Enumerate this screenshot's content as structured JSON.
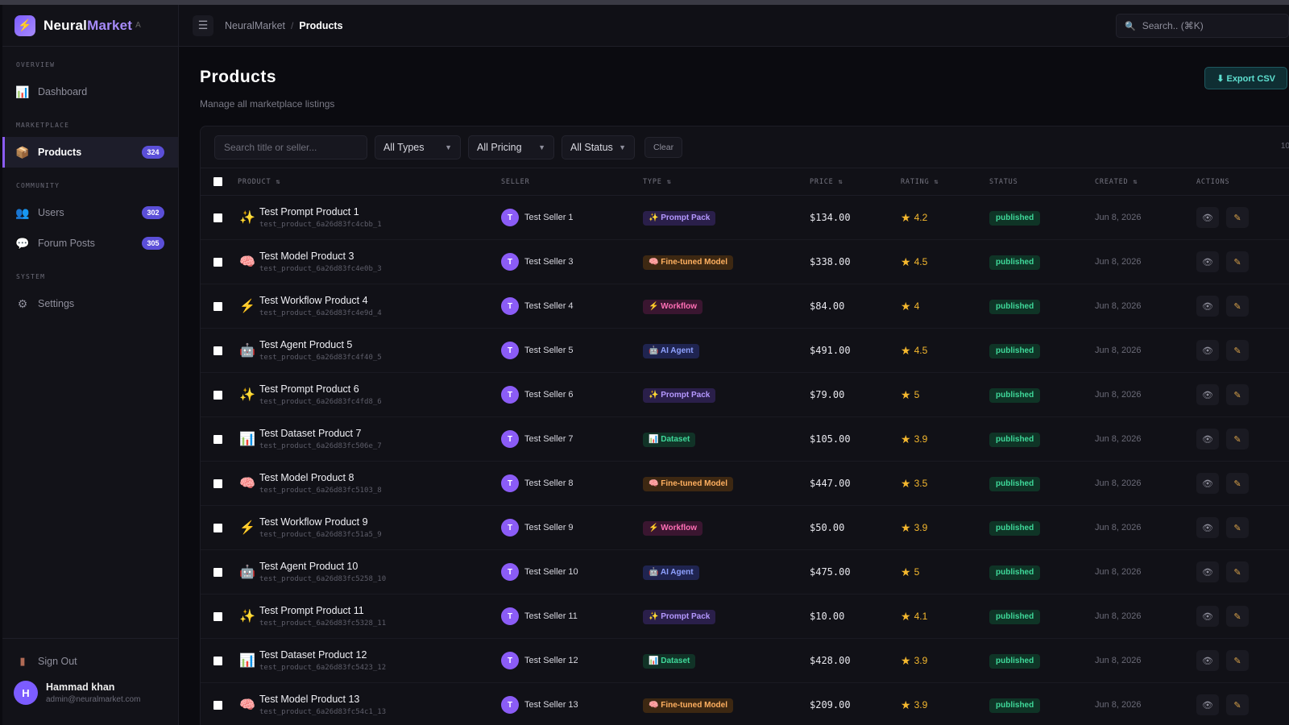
{
  "brand": {
    "name_main": "Neural",
    "name_accent": "Market",
    "suffix": "A"
  },
  "sidebar": {
    "sections": [
      {
        "label": "OVERVIEW",
        "items": [
          {
            "label": "Dashboard",
            "icon": "bar-chart-icon"
          }
        ]
      },
      {
        "label": "MARKETPLACE",
        "items": [
          {
            "label": "Products",
            "icon": "package-icon",
            "badge": "324",
            "active": true
          }
        ]
      },
      {
        "label": "COMMUNITY",
        "items": [
          {
            "label": "Users",
            "icon": "users-icon",
            "badge": "302"
          },
          {
            "label": "Forum Posts",
            "icon": "chat-icon",
            "badge": "305"
          }
        ]
      },
      {
        "label": "SYSTEM",
        "items": [
          {
            "label": "Settings",
            "icon": "gear-icon"
          }
        ]
      }
    ],
    "sign_out": "Sign Out",
    "user": {
      "initial": "H",
      "name": "Hammad khan",
      "email": "admin@neuralmarket.com"
    }
  },
  "topbar": {
    "crumb_root": "NeuralMarket",
    "crumb_sep": "/",
    "crumb_current": "Products",
    "search_placeholder": "Search.. (⌘K)"
  },
  "page": {
    "title": "Products",
    "subtitle": "Manage all marketplace listings",
    "export_label": "⬇ Export CSV"
  },
  "filters": {
    "search_placeholder": "Search title or seller...",
    "types": "All Types",
    "pricing": "All Pricing",
    "status": "All Status",
    "clear": "Clear",
    "right_text": "10"
  },
  "table": {
    "headers": {
      "product": "PRODUCT ⇅",
      "seller": "SELLER",
      "type": "TYPE ⇅",
      "price": "PRICE ⇅",
      "rating": "RATING ⇅",
      "status": "STATUS",
      "created": "CREATED ⇅",
      "actions": "ACTIONS"
    },
    "rows": [
      {
        "icon": "✨",
        "title": "Test Prompt Product 1",
        "slug": "test_product_6a26d83fc4cbb_1",
        "seller_initial": "T",
        "seller": "Test Seller 1",
        "type_label": "✨ Prompt Pack",
        "type_class": "t-prompt",
        "price": "$134.00",
        "rating": "4.2",
        "status": "published",
        "created": "Jun 8, 2026"
      },
      {
        "icon": "🧠",
        "title": "Test Model Product 3",
        "slug": "test_product_6a26d83fc4e0b_3",
        "seller_initial": "T",
        "seller": "Test Seller 3",
        "type_label": "🧠 Fine-tuned Model",
        "type_class": "t-model",
        "price": "$338.00",
        "rating": "4.5",
        "status": "published",
        "created": "Jun 8, 2026"
      },
      {
        "icon": "⚡",
        "title": "Test Workflow Product 4",
        "slug": "test_product_6a26d83fc4e9d_4",
        "seller_initial": "T",
        "seller": "Test Seller 4",
        "type_label": "⚡ Workflow",
        "type_class": "t-workflow",
        "price": "$84.00",
        "rating": "4",
        "status": "published",
        "created": "Jun 8, 2026"
      },
      {
        "icon": "🤖",
        "title": "Test Agent Product 5",
        "slug": "test_product_6a26d83fc4f40_5",
        "seller_initial": "T",
        "seller": "Test Seller 5",
        "type_label": "🤖 AI Agent",
        "type_class": "t-agent",
        "price": "$491.00",
        "rating": "4.5",
        "status": "published",
        "created": "Jun 8, 2026"
      },
      {
        "icon": "✨",
        "title": "Test Prompt Product 6",
        "slug": "test_product_6a26d83fc4fd8_6",
        "seller_initial": "T",
        "seller": "Test Seller 6",
        "type_label": "✨ Prompt Pack",
        "type_class": "t-prompt",
        "price": "$79.00",
        "rating": "5",
        "status": "published",
        "created": "Jun 8, 2026"
      },
      {
        "icon": "📊",
        "title": "Test Dataset Product 7",
        "slug": "test_product_6a26d83fc506e_7",
        "seller_initial": "T",
        "seller": "Test Seller 7",
        "type_label": "📊 Dataset",
        "type_class": "t-dataset",
        "price": "$105.00",
        "rating": "3.9",
        "status": "published",
        "created": "Jun 8, 2026"
      },
      {
        "icon": "🧠",
        "title": "Test Model Product 8",
        "slug": "test_product_6a26d83fc5103_8",
        "seller_initial": "T",
        "seller": "Test Seller 8",
        "type_label": "🧠 Fine-tuned Model",
        "type_class": "t-model",
        "price": "$447.00",
        "rating": "3.5",
        "status": "published",
        "created": "Jun 8, 2026"
      },
      {
        "icon": "⚡",
        "title": "Test Workflow Product 9",
        "slug": "test_product_6a26d83fc51a5_9",
        "seller_initial": "T",
        "seller": "Test Seller 9",
        "type_label": "⚡ Workflow",
        "type_class": "t-workflow",
        "price": "$50.00",
        "rating": "3.9",
        "status": "published",
        "created": "Jun 8, 2026"
      },
      {
        "icon": "🤖",
        "title": "Test Agent Product 10",
        "slug": "test_product_6a26d83fc5258_10",
        "seller_initial": "T",
        "seller": "Test Seller 10",
        "type_label": "🤖 AI Agent",
        "type_class": "t-agent",
        "price": "$475.00",
        "rating": "5",
        "status": "published",
        "created": "Jun 8, 2026"
      },
      {
        "icon": "✨",
        "title": "Test Prompt Product 11",
        "slug": "test_product_6a26d83fc5328_11",
        "seller_initial": "T",
        "seller": "Test Seller 11",
        "type_label": "✨ Prompt Pack",
        "type_class": "t-prompt",
        "price": "$10.00",
        "rating": "4.1",
        "status": "published",
        "created": "Jun 8, 2026"
      },
      {
        "icon": "📊",
        "title": "Test Dataset Product 12",
        "slug": "test_product_6a26d83fc5423_12",
        "seller_initial": "T",
        "seller": "Test Seller 12",
        "type_label": "📊 Dataset",
        "type_class": "t-dataset",
        "price": "$428.00",
        "rating": "3.9",
        "status": "published",
        "created": "Jun 8, 2026"
      },
      {
        "icon": "🧠",
        "title": "Test Model Product 13",
        "slug": "test_product_6a26d83fc54c1_13",
        "seller_initial": "T",
        "seller": "Test Seller 13",
        "type_label": "🧠 Fine-tuned Model",
        "type_class": "t-model",
        "price": "$209.00",
        "rating": "3.9",
        "status": "published",
        "created": "Jun 8, 2026"
      }
    ]
  },
  "icons": {
    "menu": "hamburger-icon",
    "search": "search-icon",
    "view": "eye-icon",
    "edit": "pencil-icon",
    "star": "star-icon"
  },
  "colors": {
    "accent": "#8b5cf6",
    "badge": "#5b4fd8",
    "success": "#3fd99a",
    "rating": "#f5b82e"
  }
}
